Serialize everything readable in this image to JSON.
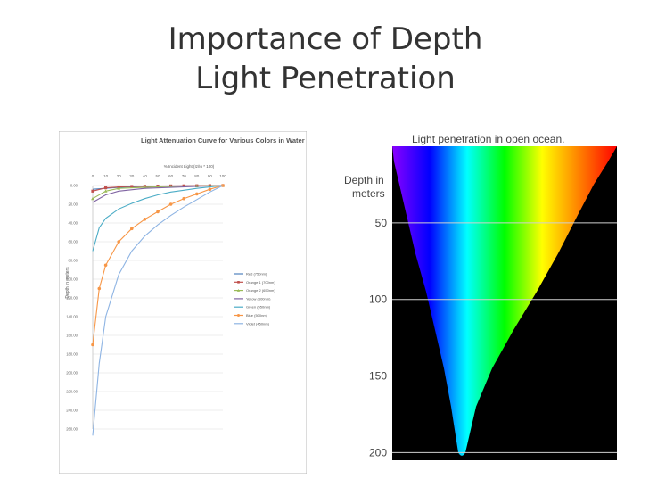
{
  "slide": {
    "title_line1": "Importance of Depth",
    "title_line2": "Light Penetration"
  },
  "left_figure": {
    "chart_data": {
      "type": "line",
      "title": "Light Attenuation Curve for Various Colors in Water",
      "xlabel": "% Incident Light (Iz/Io * 100)",
      "ylabel": "Depth in meters",
      "x_ticks": [
        "0",
        "10",
        "20",
        "30",
        "40",
        "50",
        "60",
        "70",
        "80",
        "90",
        "100"
      ],
      "y_ticks": [
        "0.00",
        "20.00",
        "40.00",
        "60.00",
        "80.00",
        "100.00",
        "120.00",
        "140.00",
        "160.00",
        "180.00",
        "200.00",
        "220.00",
        "240.00",
        "260.00"
      ],
      "xlim": [
        0,
        100
      ],
      "ylim": [
        0,
        260
      ],
      "y_inverted": true,
      "grid": true,
      "legend_position": "right",
      "series": [
        {
          "name": "Red (750nm)",
          "color": "#4f81bd",
          "marker": "none",
          "x": [
            0,
            20,
            40,
            60,
            80,
            100
          ],
          "y": [
            4,
            2,
            1,
            0.5,
            0.2,
            0
          ]
        },
        {
          "name": "Orange 1 (700nm)",
          "color": "#c0504d",
          "marker": "square",
          "x": [
            0,
            10,
            20,
            30,
            40,
            50,
            60,
            70,
            80,
            90,
            100
          ],
          "y": [
            6,
            2.5,
            1.5,
            1,
            0.8,
            0.6,
            0.4,
            0.3,
            0.2,
            0.1,
            0
          ]
        },
        {
          "name": "Orange 2 (650nm)",
          "color": "#9bbb59",
          "marker": "triangle",
          "x": [
            0,
            10,
            20,
            40,
            60,
            80,
            100
          ],
          "y": [
            14,
            6,
            3,
            2,
            1,
            0.5,
            0
          ]
        },
        {
          "name": "Yellow (600nm)",
          "color": "#8064a2",
          "marker": "none",
          "x": [
            0,
            10,
            20,
            40,
            60,
            80,
            100
          ],
          "y": [
            18,
            10,
            6,
            3,
            2,
            1,
            0
          ]
        },
        {
          "name": "Green (550nm)",
          "color": "#4bacc6",
          "marker": "none",
          "x": [
            0,
            5,
            10,
            20,
            30,
            40,
            50,
            60,
            70,
            80,
            90,
            100
          ],
          "y": [
            70,
            45,
            35,
            25,
            19,
            14,
            10,
            7,
            5,
            3,
            1.5,
            0
          ]
        },
        {
          "name": "Blue (500nm)",
          "color": "#f79646",
          "marker": "circle",
          "x": [
            0,
            5,
            10,
            20,
            30,
            40,
            50,
            60,
            70,
            80,
            90,
            100
          ],
          "y": [
            170,
            110,
            85,
            60,
            46,
            36,
            28,
            20,
            14,
            9,
            4,
            0
          ]
        },
        {
          "name": "Violet (450nm)",
          "color": "#8eb4e3",
          "marker": "none",
          "x": [
            0,
            5,
            10,
            20,
            30,
            40,
            50,
            60,
            70,
            80,
            90,
            100
          ],
          "y": [
            267,
            190,
            140,
            95,
            70,
            54,
            42,
            32,
            23,
            15,
            7,
            0
          ]
        }
      ]
    }
  },
  "right_figure": {
    "title": "Light penetration in open ocean.",
    "depth_label_line1": "Depth in",
    "depth_label_line2": "meters",
    "depth_ticks": [
      "50",
      "100",
      "150",
      "200"
    ],
    "depth_values": [
      50,
      100,
      150,
      200
    ],
    "max_depth": 205,
    "spectrum": [
      "#8b00ff",
      "#0000ff",
      "#00ffff",
      "#00ff00",
      "#ffff00",
      "#ff8000",
      "#ff0000"
    ]
  }
}
